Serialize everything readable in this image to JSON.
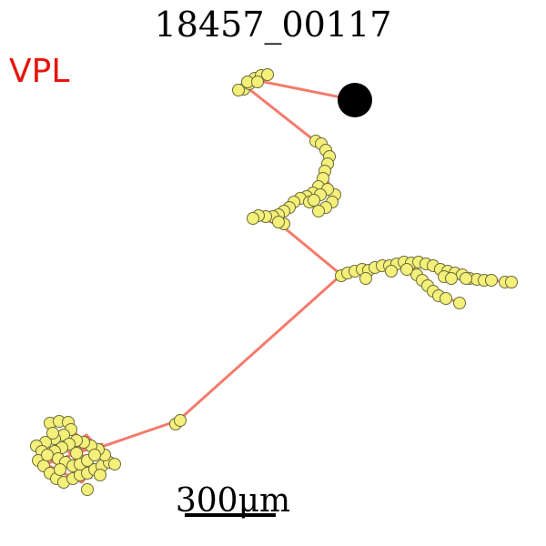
{
  "figure": {
    "title": "18457_00117",
    "region_label": "VPL",
    "scale_bar_label": "300μm",
    "colors": {
      "background": "#ffffff",
      "region_label": "#e8140c",
      "axon": "#f47b6c",
      "bouton_fill": "#f4f07a",
      "bouton_stroke": "#6b6b3a",
      "soma": "#000000",
      "scale_bar": "#000000"
    }
  }
}
